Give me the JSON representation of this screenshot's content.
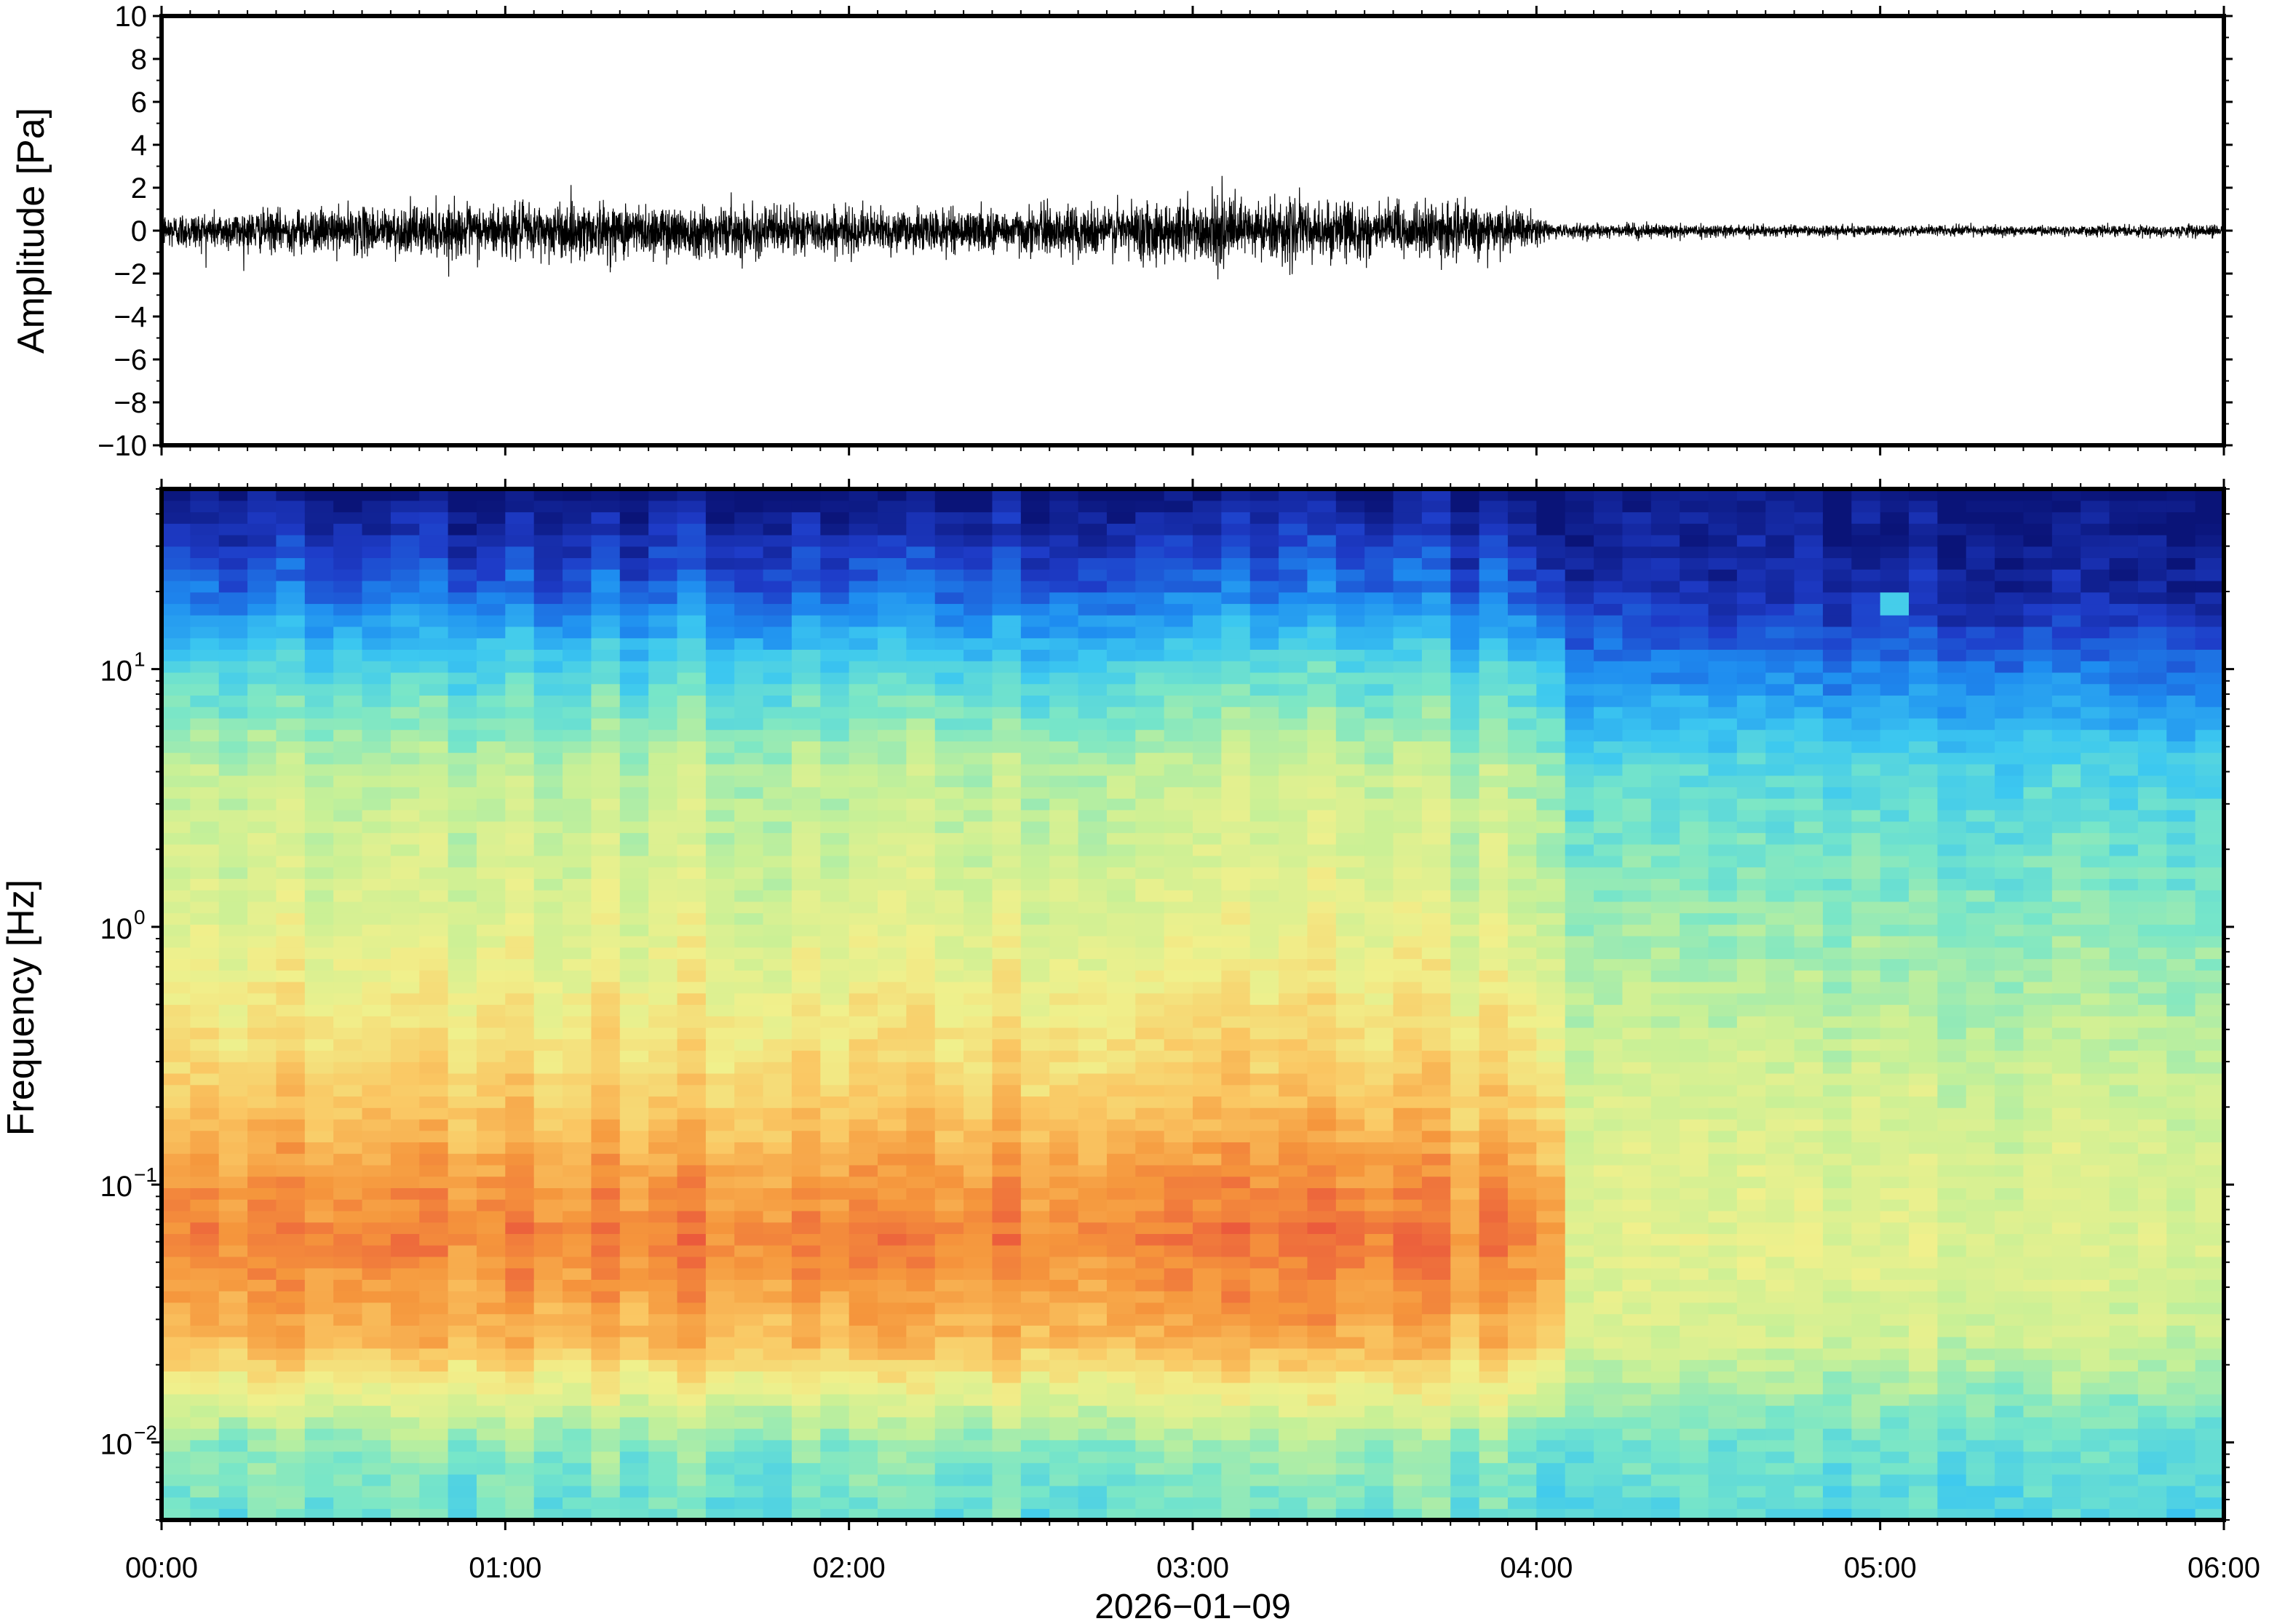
{
  "chart_data": [
    {
      "type": "line",
      "ylabel": "Amplitude [Pa]",
      "ylim": [
        -10,
        10
      ],
      "yticks": [
        -10,
        -8,
        -6,
        -4,
        -2,
        0,
        2,
        4,
        6,
        8,
        10
      ],
      "ytick_labels": [
        "−10",
        "−8",
        "−6",
        "−4",
        "−2",
        "0",
        "2",
        "4",
        "6",
        "8",
        "10"
      ],
      "xlim_hours": [
        0,
        6
      ],
      "line_color": "#000000",
      "envelope": {
        "x_hours": [
          0,
          0.25,
          0.5,
          0.75,
          1.0,
          1.25,
          1.5,
          1.75,
          2.0,
          2.25,
          2.5,
          2.75,
          3.0,
          3.25,
          3.5,
          3.75,
          3.95,
          4.05,
          4.5,
          5.0,
          5.5,
          6.0
        ],
        "amplitude": [
          0.9,
          1.0,
          1.1,
          1.2,
          1.3,
          1.4,
          1.3,
          1.2,
          1.1,
          1.0,
          1.1,
          1.3,
          1.6,
          1.5,
          1.4,
          1.3,
          1.0,
          0.35,
          0.3,
          0.25,
          0.25,
          0.3
        ]
      }
    },
    {
      "type": "heatmap",
      "ylabel": "Frequency [Hz]",
      "yscale": "log",
      "ylim": [
        0.005,
        50
      ],
      "yticks": [
        0.01,
        0.1,
        1,
        10
      ],
      "ytick_labels": [
        {
          "base": "10",
          "exp": "−2"
        },
        {
          "base": "10",
          "exp": "−1"
        },
        {
          "base": "10",
          "exp": "0"
        },
        {
          "base": "10",
          "exp": "1"
        }
      ],
      "xlim_hours": [
        0,
        6
      ],
      "xtick_labels": [
        "00:00",
        "01:00",
        "02:00",
        "03:00",
        "04:00",
        "05:00",
        "06:00"
      ],
      "xlabel": "2026−01−09",
      "colormap": [
        "#0a1478",
        "#1e3cc8",
        "#1e8cf0",
        "#3cc8f0",
        "#78e6c8",
        "#c8f096",
        "#f0f08c",
        "#fac864",
        "#f5963c",
        "#eb5a3c"
      ],
      "event_change_hours": 4.05,
      "spot_feature": {
        "hour": 5.05,
        "freq_hz": 18
      }
    }
  ]
}
